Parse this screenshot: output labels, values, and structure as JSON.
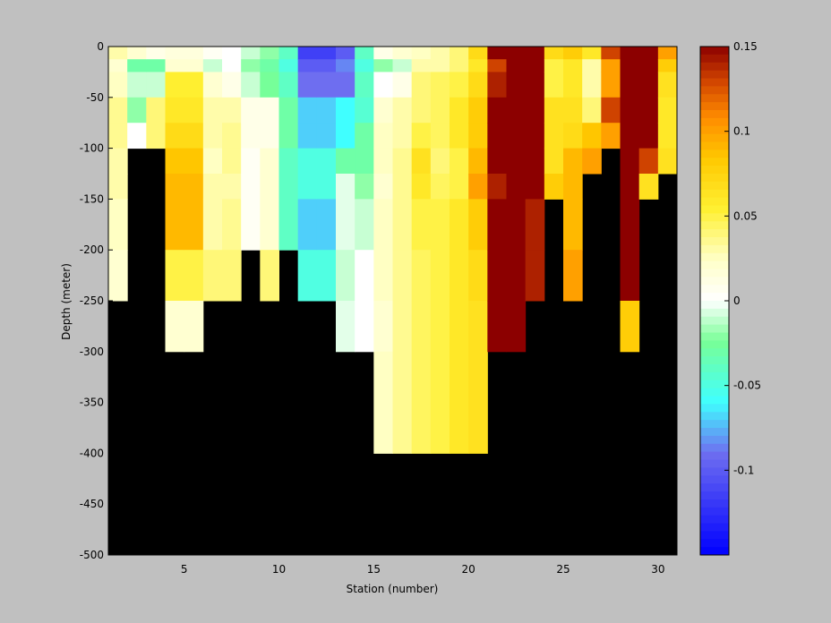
{
  "chart_data": {
    "type": "heatmap",
    "title": "",
    "xlabel": "Station (number)",
    "ylabel": "Depth (meter)",
    "xlim": [
      1,
      31
    ],
    "ylim": [
      -500,
      0
    ],
    "x_ticks": [
      "5",
      "10",
      "15",
      "20",
      "25",
      "30"
    ],
    "y_ticks": [
      "0",
      "-50",
      "-100",
      "-150",
      "-200",
      "-250",
      "-300",
      "-350",
      "-400",
      "-450",
      "-500"
    ],
    "colorbar": {
      "range": [
        -0.15,
        0.15
      ],
      "ticks": [
        "0.15",
        "0.1",
        "0.05",
        "0",
        "-0.05",
        "-0.1"
      ],
      "colormap": "blue-cyan-green-white-yellow-orange-darkred"
    },
    "no_data_color": "#000000",
    "depth_levels": [
      0,
      -12.5,
      -25,
      -50,
      -75,
      -100,
      -125,
      -150,
      -200,
      -250,
      -300,
      -400,
      -500
    ],
    "stations": [
      {
        "station": 1,
        "values": [
          0.03,
          0.02,
          0.025,
          0.035,
          0.035,
          0.03,
          0.03,
          0.025,
          0.02
        ]
      },
      {
        "station": 2,
        "values": [
          0.02,
          -0.03,
          -0.01,
          -0.02,
          0.0
        ]
      },
      {
        "station": 3,
        "values": [
          0.01,
          -0.03,
          -0.01,
          0.04,
          0.04
        ]
      },
      {
        "station": 4,
        "values": [
          0.015,
          0.02,
          0.055,
          0.06,
          0.07,
          0.085,
          0.09,
          0.09,
          0.05,
          0.02
        ]
      },
      {
        "station": 5,
        "values": [
          0.015,
          0.02,
          0.055,
          0.06,
          0.07,
          0.085,
          0.09,
          0.09,
          0.05,
          0.02
        ]
      },
      {
        "station": 6,
        "values": [
          0.005,
          -0.01,
          0.02,
          0.03,
          0.03,
          0.025,
          0.03,
          0.03,
          0.04
        ]
      },
      {
        "station": 7,
        "values": [
          0.0,
          0.0,
          0.01,
          0.03,
          0.035,
          0.035,
          0.03,
          0.035,
          0.04
        ]
      },
      {
        "station": 8,
        "values": [
          -0.01,
          -0.02,
          -0.01,
          0.01,
          0.01,
          0.005,
          0.005,
          0.005
        ]
      },
      {
        "station": 9,
        "values": [
          -0.02,
          -0.03,
          -0.025,
          0.01,
          0.01,
          0.02,
          0.02,
          0.02,
          0.04
        ]
      },
      {
        "station": 10,
        "values": [
          -0.04,
          -0.05,
          -0.04,
          -0.03,
          -0.03,
          -0.04,
          -0.04,
          -0.04
        ]
      },
      {
        "station": 11,
        "values": [
          -0.115,
          -0.1,
          -0.09,
          -0.07,
          -0.07,
          -0.05,
          -0.05,
          -0.07,
          -0.05
        ]
      },
      {
        "station": 12,
        "values": [
          -0.115,
          -0.1,
          -0.09,
          -0.07,
          -0.07,
          -0.05,
          -0.05,
          -0.07,
          -0.05
        ]
      },
      {
        "station": 13,
        "values": [
          -0.1,
          -0.085,
          -0.09,
          -0.06,
          -0.06,
          -0.03,
          -0.005,
          -0.005,
          -0.01,
          -0.005
        ]
      },
      {
        "station": 14,
        "values": [
          -0.04,
          -0.05,
          -0.04,
          -0.045,
          -0.03,
          -0.03,
          -0.02,
          -0.01,
          0.0,
          0.0
        ]
      },
      {
        "station": 15,
        "values": [
          0.01,
          -0.02,
          0.0,
          0.02,
          0.025,
          0.025,
          0.02,
          0.025,
          0.025,
          0.02,
          0.025
        ]
      },
      {
        "station": 16,
        "values": [
          0.02,
          -0.01,
          0.01,
          0.03,
          0.03,
          0.035,
          0.035,
          0.035,
          0.035,
          0.035,
          0.035
        ]
      },
      {
        "station": 17,
        "values": [
          0.025,
          0.03,
          0.04,
          0.04,
          0.05,
          0.065,
          0.06,
          0.05,
          0.045,
          0.045,
          0.045
        ]
      },
      {
        "station": 18,
        "values": [
          0.03,
          0.03,
          0.045,
          0.045,
          0.045,
          0.04,
          0.045,
          0.05,
          0.05,
          0.05,
          0.05
        ]
      },
      {
        "station": 19,
        "values": [
          0.04,
          0.04,
          0.05,
          0.06,
          0.06,
          0.05,
          0.05,
          0.06,
          0.06,
          0.06,
          0.06
        ]
      },
      {
        "station": 20,
        "values": [
          0.07,
          0.06,
          0.07,
          0.08,
          0.08,
          0.09,
          0.1,
          0.08,
          0.07,
          0.065,
          0.065
        ]
      },
      {
        "station": 21,
        "values": [
          0.15,
          0.13,
          0.14,
          0.15,
          0.15,
          0.15,
          0.14,
          0.15,
          0.15,
          0.15
        ]
      },
      {
        "station": 22,
        "values": [
          0.15,
          0.15,
          0.15,
          0.15,
          0.15,
          0.15,
          0.15,
          0.15,
          0.15,
          0.15
        ]
      },
      {
        "station": 23,
        "values": [
          0.15,
          0.15,
          0.15,
          0.15,
          0.15,
          0.15,
          0.15,
          0.14,
          0.14
        ]
      },
      {
        "station": 24,
        "values": [
          0.07,
          0.05,
          0.05,
          0.065,
          0.065,
          0.065,
          0.08
        ]
      },
      {
        "station": 25,
        "values": [
          0.08,
          0.06,
          0.06,
          0.065,
          0.07,
          0.09,
          0.09,
          0.09,
          0.1
        ]
      },
      {
        "station": 26,
        "values": [
          0.06,
          0.03,
          0.03,
          0.04,
          0.085,
          0.1
        ]
      },
      {
        "station": 27,
        "values": [
          0.13,
          0.1,
          0.1,
          0.13,
          0.1
        ]
      },
      {
        "station": 28,
        "values": [
          0.15,
          0.15,
          0.15,
          0.15,
          0.15,
          0.15,
          0.15,
          0.15,
          0.15,
          0.08
        ]
      },
      {
        "station": 29,
        "values": [
          0.15,
          0.15,
          0.15,
          0.15,
          0.15,
          0.13,
          0.065
        ]
      },
      {
        "station": 30,
        "values": [
          0.1,
          0.08,
          0.065,
          0.06,
          0.06,
          0.065
        ]
      }
    ]
  }
}
